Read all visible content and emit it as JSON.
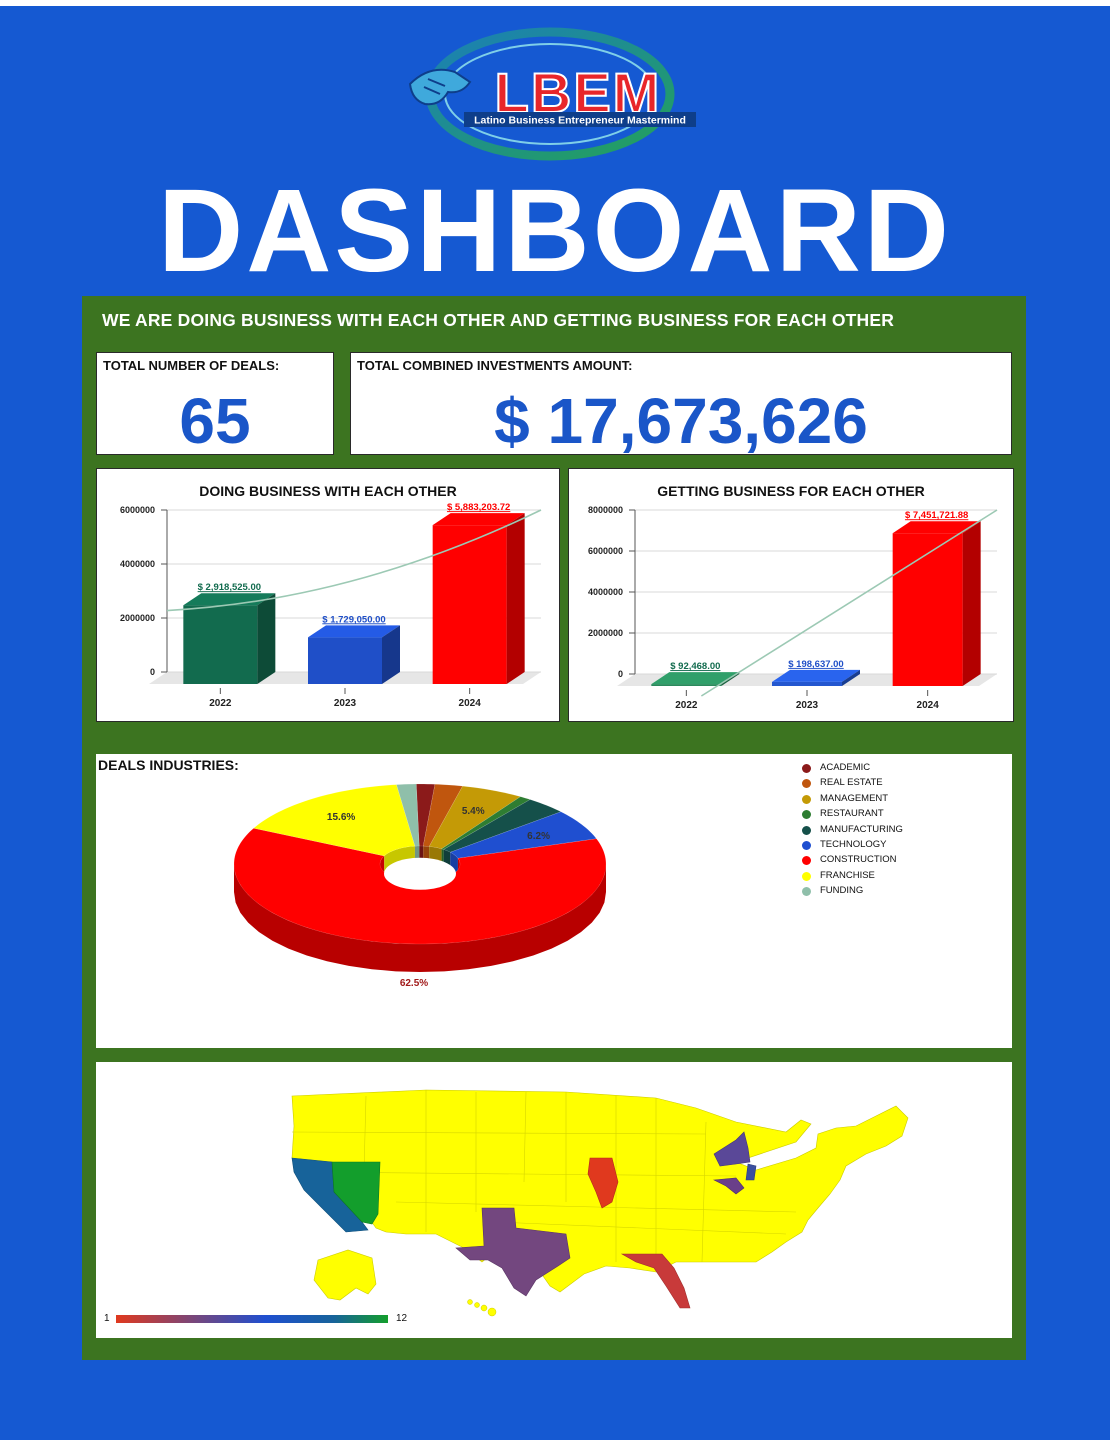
{
  "logo": {
    "text": "LBEM",
    "subtitle": "Latino Business Entrepreneur Mastermind"
  },
  "page_title": "DASHBOARD",
  "tagline": "WE ARE DOING BUSINESS WITH EACH OTHER AND GETTING BUSINESS FOR EACH OTHER",
  "kpis": {
    "deals_label": "TOTAL NUMBER OF DEALS:",
    "deals_value": "65",
    "investment_label": "TOTAL COMBINED INVESTMENTS AMOUNT:",
    "investment_value": "$ 17,673,626"
  },
  "colors": {
    "background": "#1559D2",
    "panel": "#3C7420",
    "kpi_text": "#1A56C8"
  },
  "chart_data": [
    {
      "type": "bar",
      "title": "DOING BUSINESS WITH EACH OTHER",
      "categories": [
        "2022",
        "2023",
        "2024"
      ],
      "values": [
        2918525.0,
        1729050.0,
        5883203.72
      ],
      "data_labels": [
        "$ 2,918,525.00",
        "$ 1,729,050.00",
        "$ 5,883,203.72"
      ],
      "colors": [
        "#126B4E",
        "#1F4FC8",
        "#FF0000"
      ],
      "label_colors": [
        "#126B4E",
        "#1F4FC8",
        "#FF0000"
      ],
      "yticks": [
        "0",
        "2000000",
        "4000000",
        "6000000"
      ],
      "ylim": [
        0,
        6000000
      ],
      "trendline": "exponential"
    },
    {
      "type": "bar",
      "title": "GETTING BUSINESS FOR EACH OTHER",
      "categories": [
        "2022",
        "2023",
        "2024"
      ],
      "values": [
        92468.0,
        198637.0,
        7451721.88
      ],
      "data_labels": [
        "$ 92,468.00",
        "$ 198,637.00",
        "$ 7,451,721.88"
      ],
      "colors": [
        "#2A8A5C",
        "#2457CF",
        "#FF0000"
      ],
      "label_colors": [
        "#126B4E",
        "#1F4FC8",
        "#FF0000"
      ],
      "yticks": [
        "0",
        "2000000",
        "4000000",
        "6000000",
        "8000000"
      ],
      "ylim": [
        0,
        8000000
      ],
      "trendline": "linear"
    },
    {
      "type": "pie",
      "title": "DEALS INDUSTRIES:",
      "style": "3d-donut",
      "labels": [
        "ACADEMIC",
        "REAL ESTATE",
        "MANAGEMENT",
        "RESTAURANT",
        "MANUFACTURING",
        "TECHNOLOGY",
        "CONSTRUCTION",
        "FRANCHISE",
        "FUNDING"
      ],
      "values": [
        1.6,
        2.4,
        5.4,
        1.0,
        3.6,
        6.2,
        62.5,
        15.6,
        1.7
      ],
      "slice_labels": [
        "",
        "",
        "5.4%",
        "",
        "",
        "6.2%",
        "62.5%",
        "15.6%",
        ""
      ],
      "colors": [
        "#8B1A1A",
        "#C0560E",
        "#C49A06",
        "#2E7D32",
        "#15504A",
        "#1F4FD0",
        "#FF0000",
        "#FFFF00",
        "#8FBFAA"
      ],
      "legend_position": "top-right"
    }
  ],
  "map": {
    "scale_min": "1",
    "scale_max": "12",
    "default_color": "#FFFF00",
    "states": [
      {
        "name": "California",
        "color": "#17639A"
      },
      {
        "name": "Nevada",
        "color": "#139E2C"
      },
      {
        "name": "Texas",
        "color": "#73477F"
      },
      {
        "name": "Illinois",
        "color": "#E0391E"
      },
      {
        "name": "Florida",
        "color": "#C83A3A"
      },
      {
        "name": "New York",
        "color": "#5A4898"
      },
      {
        "name": "New Jersey",
        "color": "#3A4FA0"
      },
      {
        "name": "Maryland",
        "color": "#6A3F8A"
      }
    ]
  }
}
